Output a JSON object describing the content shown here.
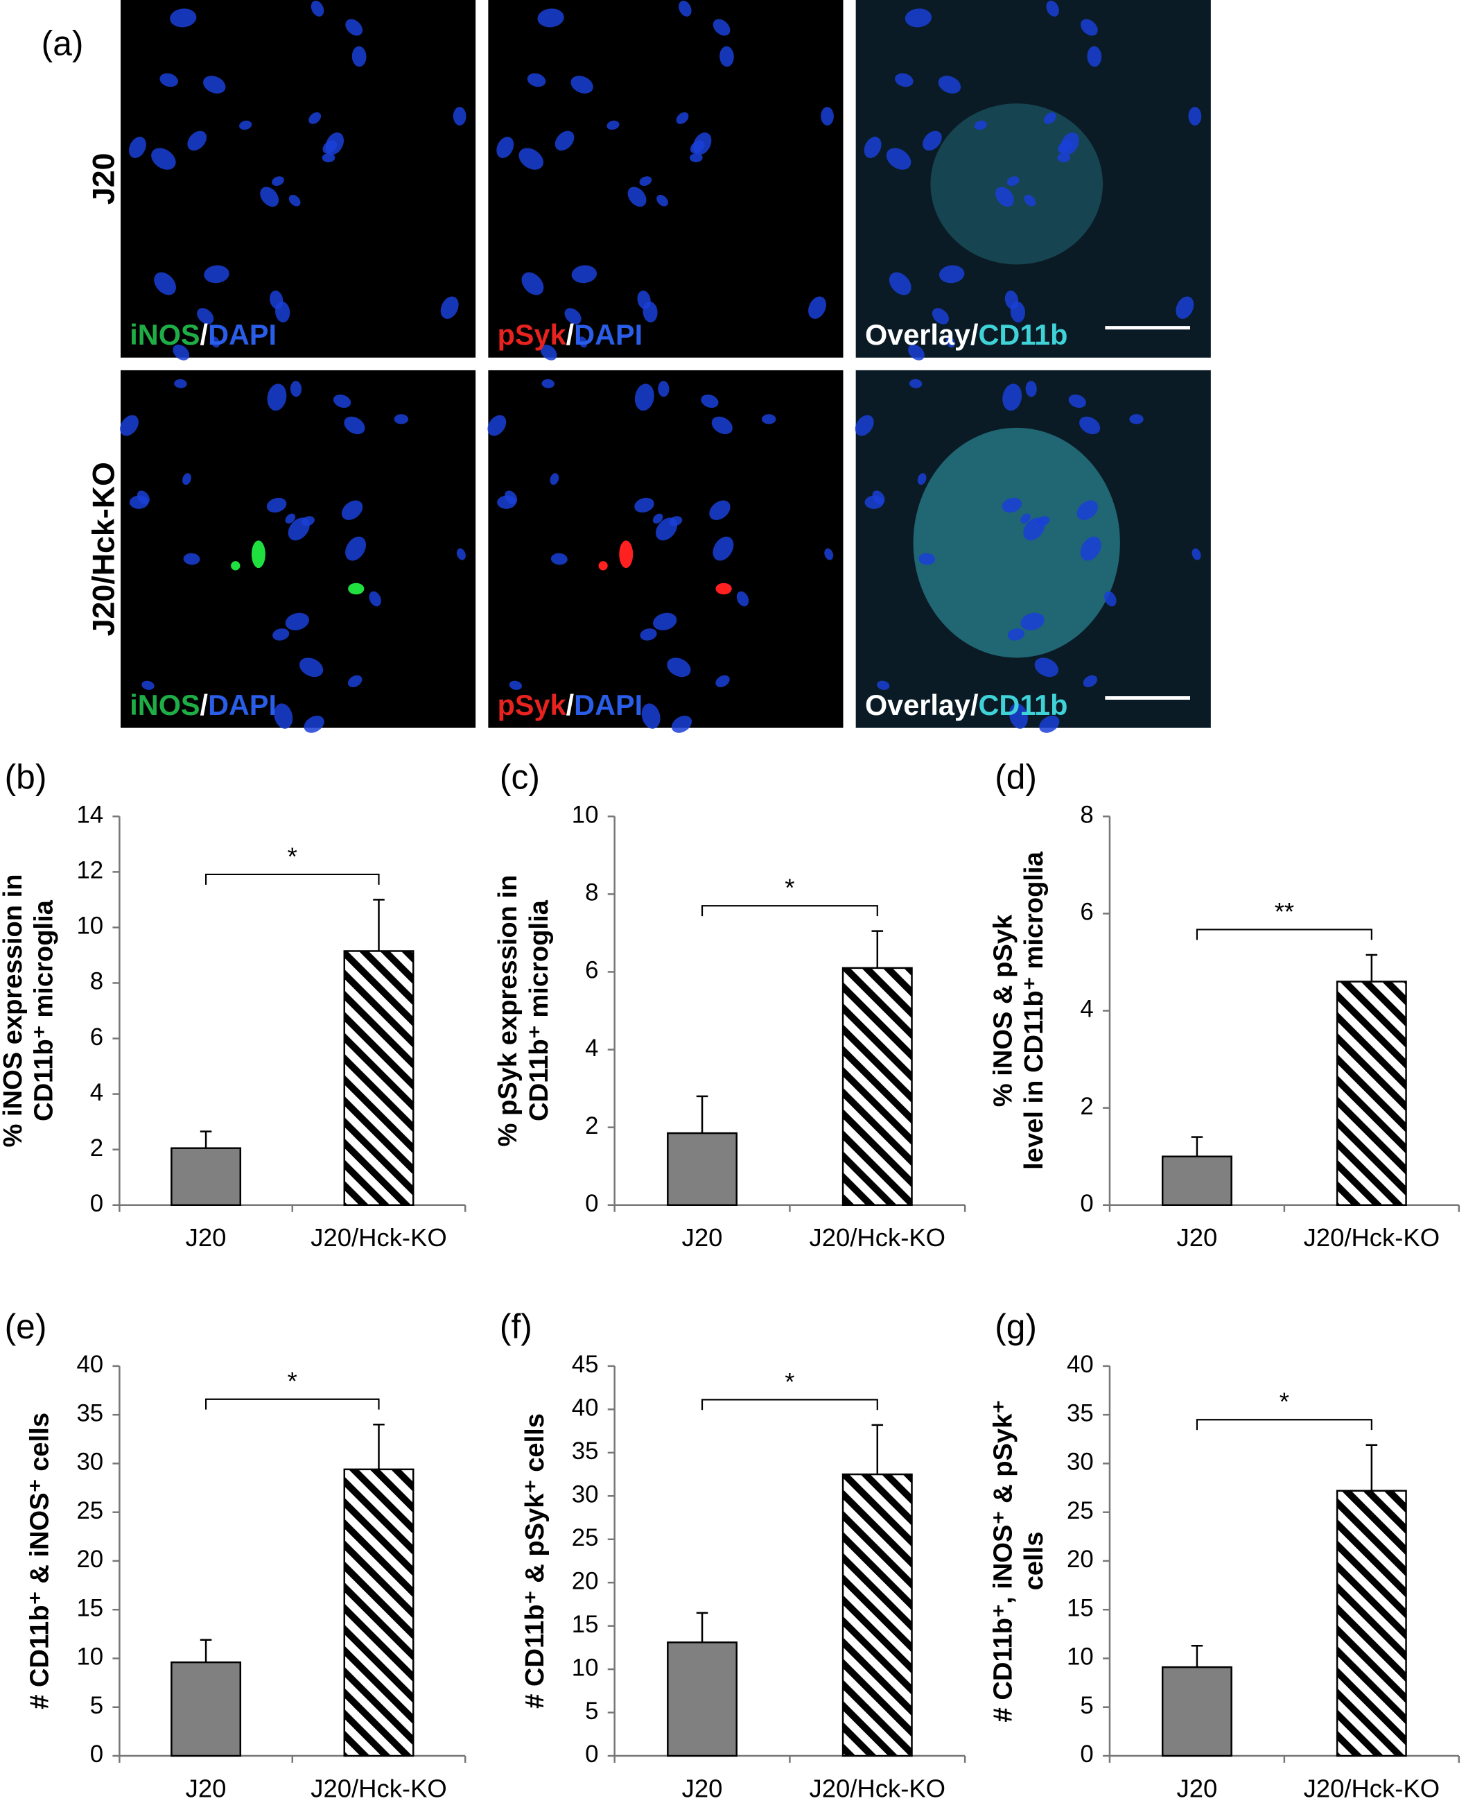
{
  "figure": {
    "label": "(a)",
    "rows": [
      "J20",
      "J20/Hck-KO"
    ],
    "stains": [
      [
        {
          "text": "iNOS",
          "color": "#1fae46"
        },
        {
          "text": "/",
          "color": "#ffffff"
        },
        {
          "text": "DAPI",
          "color": "#2a5ee8"
        }
      ],
      [
        {
          "text": "pSyk",
          "color": "#e8231f"
        },
        {
          "text": "/",
          "color": "#ffffff"
        },
        {
          "text": "DAPI",
          "color": "#2a5ee8"
        }
      ],
      [
        {
          "text": "Overlay/",
          "color": "#ffffff"
        },
        {
          "text": "CD11b",
          "color": "#3fd3d8"
        }
      ]
    ]
  },
  "chart_data": [
    {
      "type": "bar",
      "panel_label": "(b)",
      "y_label": [
        "% iNOS expression in",
        "CD11b⁺ microglia"
      ],
      "categories": [
        "J20",
        "J20/Hck-KO"
      ],
      "values": [
        2.05,
        9.15
      ],
      "errors": [
        0.6,
        1.85
      ],
      "bar_styles": [
        {
          "fill": "#808080"
        },
        {
          "fill": "#ffffff",
          "hatch": "#000000"
        }
      ],
      "ylim": [
        0,
        14
      ],
      "yticks": [
        0,
        2,
        4,
        6,
        8,
        10,
        12,
        14
      ],
      "significance": "*"
    },
    {
      "type": "bar",
      "panel_label": "(c)",
      "y_label": [
        "% pSyk expression in",
        "CD11b⁺ microglia"
      ],
      "categories": [
        "J20",
        "J20/Hck-KO"
      ],
      "values": [
        1.85,
        6.1
      ],
      "errors": [
        0.95,
        0.95
      ],
      "bar_styles": [
        {
          "fill": "#808080"
        },
        {
          "fill": "#ffffff",
          "hatch": "#000000"
        }
      ],
      "ylim": [
        0,
        10
      ],
      "yticks": [
        0,
        2,
        4,
        6,
        8,
        10
      ],
      "significance": "*"
    },
    {
      "type": "bar",
      "panel_label": "(d)",
      "y_label": [
        "% iNOS & pSyk",
        "level in CD11b⁺ microglia"
      ],
      "categories": [
        "J20",
        "J20/Hck-KO"
      ],
      "values": [
        1.0,
        4.6
      ],
      "errors": [
        0.4,
        0.55
      ],
      "bar_styles": [
        {
          "fill": "#808080"
        },
        {
          "fill": "#ffffff",
          "hatch": "#000000"
        }
      ],
      "ylim": [
        0,
        8
      ],
      "yticks": [
        0,
        2,
        4,
        6,
        8
      ],
      "significance": "**"
    },
    {
      "type": "bar",
      "panel_label": "(e)",
      "y_label": [
        "# CD11b⁺ & iNOS⁺ cells"
      ],
      "categories": [
        "J20",
        "J20/Hck-KO"
      ],
      "values": [
        9.6,
        29.4
      ],
      "errors": [
        2.3,
        4.6
      ],
      "bar_styles": [
        {
          "fill": "#808080"
        },
        {
          "fill": "#ffffff",
          "hatch": "#000000"
        }
      ],
      "ylim": [
        0,
        40
      ],
      "yticks": [
        0,
        5,
        10,
        15,
        20,
        25,
        30,
        35,
        40
      ],
      "significance": "*"
    },
    {
      "type": "bar",
      "panel_label": "(f)",
      "y_label": [
        "# CD11b⁺ & pSyk⁺ cells"
      ],
      "categories": [
        "J20",
        "J20/Hck-KO"
      ],
      "values": [
        13.1,
        32.5
      ],
      "errors": [
        3.4,
        5.7
      ],
      "bar_styles": [
        {
          "fill": "#808080"
        },
        {
          "fill": "#ffffff",
          "hatch": "#000000"
        }
      ],
      "ylim": [
        0,
        45
      ],
      "yticks": [
        0,
        5,
        10,
        15,
        20,
        25,
        30,
        35,
        40,
        45
      ],
      "significance": "*"
    },
    {
      "type": "bar",
      "panel_label": "(g)",
      "y_label": [
        "# CD11b⁺, iNOS⁺ & pSyk⁺",
        "cells"
      ],
      "categories": [
        "J20",
        "J20/Hck-KO"
      ],
      "values": [
        9.1,
        27.2
      ],
      "errors": [
        2.2,
        4.7
      ],
      "bar_styles": [
        {
          "fill": "#808080"
        },
        {
          "fill": "#ffffff",
          "hatch": "#000000"
        }
      ],
      "ylim": [
        0,
        40
      ],
      "yticks": [
        0,
        5,
        10,
        15,
        20,
        25,
        30,
        35,
        40
      ],
      "significance": "*"
    }
  ]
}
